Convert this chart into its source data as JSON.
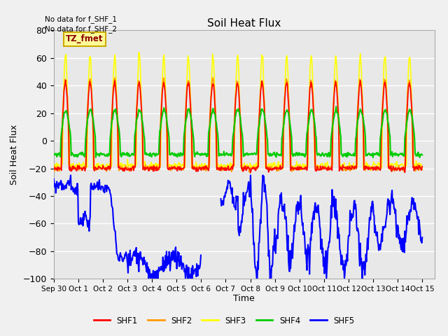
{
  "title": "Soil Heat Flux",
  "ylabel": "Soil Heat Flux",
  "xlabel": "Time",
  "ylim": [
    -100,
    80
  ],
  "xlim": [
    0,
    15.5
  ],
  "bg_color": "#e8e8e8",
  "fig_color": "#f0f0f0",
  "grid_color": "white",
  "annotations": [
    "No data for f_SHF_1",
    "No data for f_SHF_2"
  ],
  "legend_box_label": "TZ_fmet",
  "xtick_labels": [
    "Sep 30",
    "Oct 1",
    "Oct 2",
    "Oct 3",
    "Oct 4",
    "Oct 5",
    "Oct 6",
    "Oct 7",
    "Oct 8",
    "Oct 9",
    "Oct 10",
    "Oct 11",
    "Oct 12",
    "Oct 13",
    "Oct 14",
    "Oct 15"
  ],
  "colors": {
    "SHF1": "#ff0000",
    "SHF2": "#ff9900",
    "SHF3": "#ffff00",
    "SHF4": "#00cc00",
    "SHF5": "#0000ff"
  },
  "linewidths": {
    "SHF1": 1.2,
    "SHF2": 1.2,
    "SHF3": 1.2,
    "SHF4": 1.5,
    "SHF5": 1.5
  }
}
